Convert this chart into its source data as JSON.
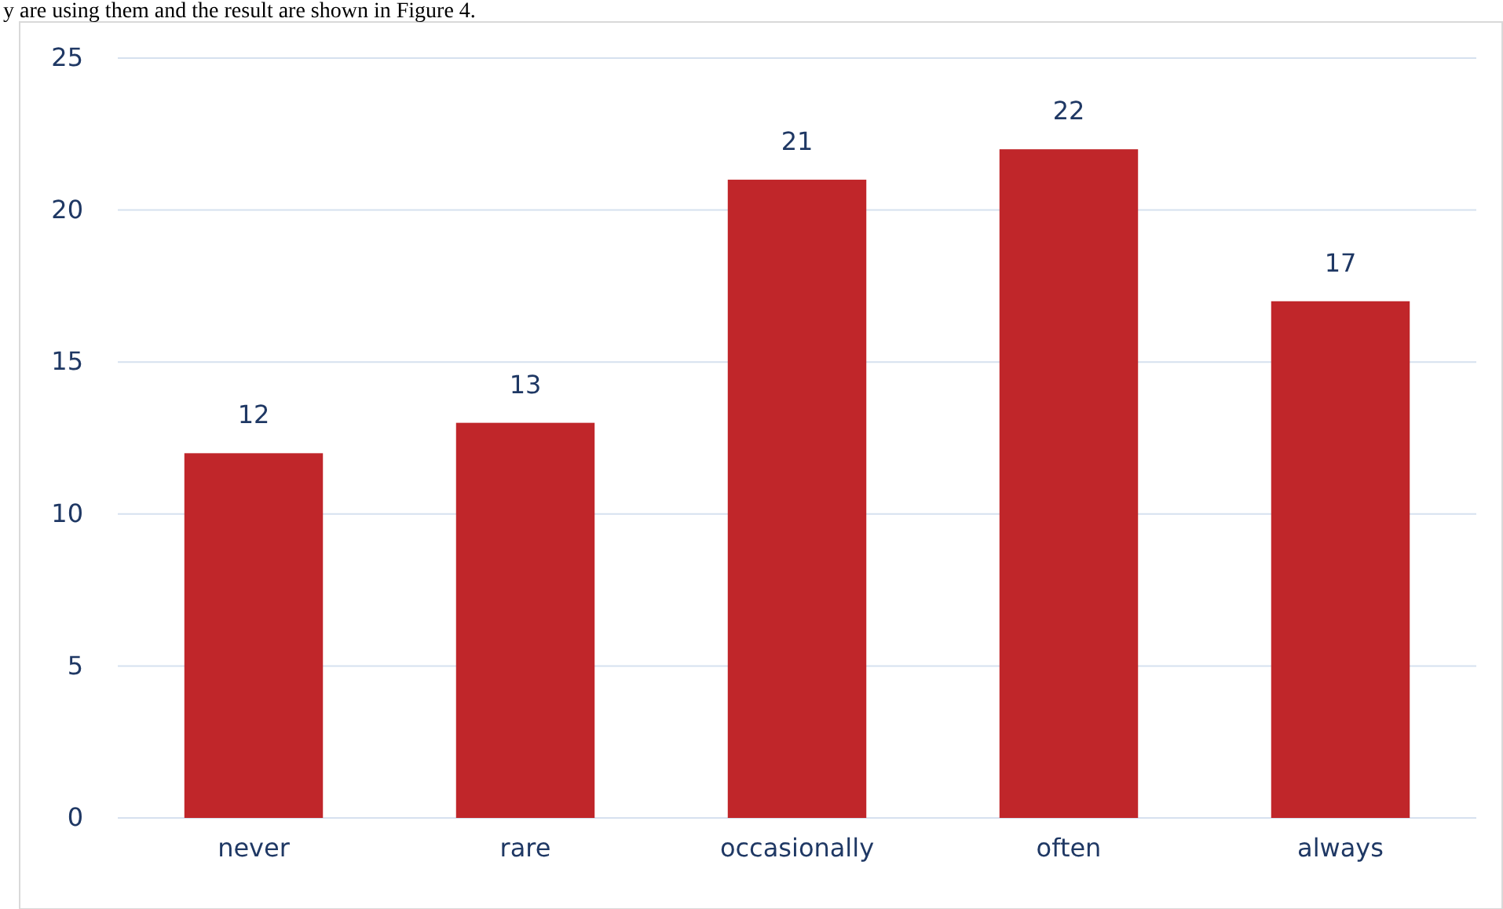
{
  "chart_data": {
    "type": "bar",
    "annotations": [
      "y are using them and the result are shown in Figure 4."
    ],
    "categories": [
      "never",
      "rare",
      "occasionally",
      "often",
      "always"
    ],
    "values": [
      12,
      13,
      21,
      22,
      17
    ],
    "color": "#c0262a",
    "ylim": [
      0,
      25
    ],
    "yticks": [
      0,
      5,
      10,
      15,
      20,
      25
    ],
    "grid": "y",
    "data_labels": true
  }
}
